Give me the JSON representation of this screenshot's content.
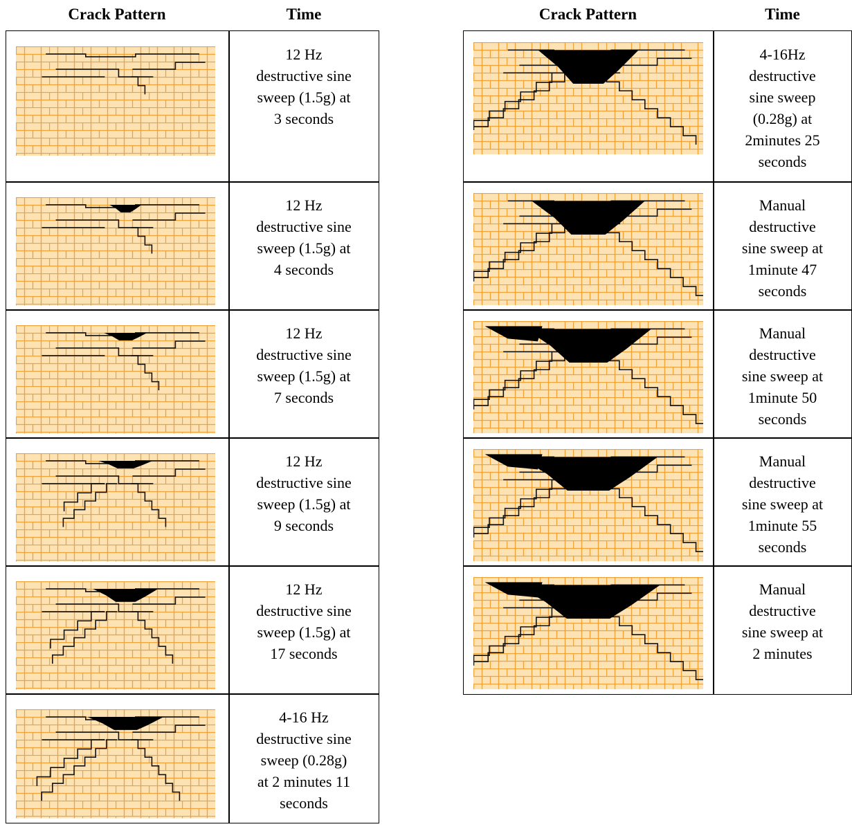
{
  "left": {
    "headers": [
      "Crack Pattern",
      "Time"
    ],
    "rows": [
      {
        "time": [
          "12 Hz",
          "destructive sine",
          "sweep (1.5g) at",
          "3 seconds"
        ]
      },
      {
        "time": [
          "12 Hz",
          "destructive sine",
          "sweep (1.5g) at",
          "4 seconds"
        ]
      },
      {
        "time": [
          "12 Hz",
          "destructive sine",
          "sweep (1.5g) at",
          "7 seconds"
        ]
      },
      {
        "time": [
          "12 Hz",
          "destructive sine",
          "sweep (1.5g) at",
          "9 seconds"
        ]
      },
      {
        "time": [
          "12 Hz",
          "destructive sine",
          "sweep (1.5g) at",
          "17 seconds"
        ]
      },
      {
        "time": [
          "4-16 Hz",
          "destructive sine",
          "sweep (0.28g)",
          "at 2 minutes 11",
          "seconds"
        ]
      }
    ]
  },
  "right": {
    "headers": [
      "Crack Pattern",
      "Time"
    ],
    "rows": [
      {
        "time": [
          "4-16Hz",
          "destructive",
          "sine sweep",
          "(0.28g) at",
          "2minutes 25",
          "seconds"
        ]
      },
      {
        "time": [
          "Manual",
          "destructive",
          "sine sweep at",
          "1minute 47",
          "seconds"
        ]
      },
      {
        "time": [
          "Manual",
          "destructive",
          "sine sweep at",
          "1minute 50",
          "seconds"
        ]
      },
      {
        "time": [
          "Manual",
          "destructive",
          "sine sweep at",
          "1minute 55",
          "seconds"
        ]
      },
      {
        "time": [
          "Manual",
          "destructive",
          "sine sweep at",
          "2 minutes"
        ]
      }
    ]
  }
}
